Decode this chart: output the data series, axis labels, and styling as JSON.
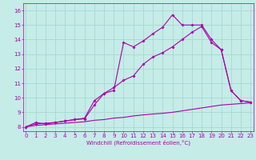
{
  "xlabel": "Windchill (Refroidissement éolien,°C)",
  "background_color": "#c5ece6",
  "grid_color": "#a8d8d2",
  "line_color": "#aa00aa",
  "x_ticks": [
    0,
    1,
    2,
    3,
    4,
    5,
    6,
    7,
    8,
    9,
    10,
    11,
    12,
    13,
    14,
    15,
    16,
    17,
    18,
    19,
    20,
    21,
    22,
    23
  ],
  "y_ticks": [
    8,
    9,
    10,
    11,
    12,
    13,
    14,
    15,
    16
  ],
  "ylim": [
    7.7,
    16.5
  ],
  "xlim": [
    -0.3,
    23.3
  ],
  "line1_x": [
    0,
    1,
    2,
    3,
    4,
    5,
    6,
    7,
    8,
    9,
    10,
    11,
    12,
    13,
    14,
    15,
    16,
    17,
    18,
    19,
    20,
    21,
    22,
    23
  ],
  "line1_y": [
    8.0,
    8.3,
    8.2,
    8.3,
    8.4,
    8.5,
    8.55,
    9.5,
    10.3,
    10.5,
    13.8,
    13.5,
    13.9,
    14.4,
    14.85,
    15.7,
    15.0,
    15.0,
    15.0,
    14.0,
    13.3,
    10.5,
    9.8,
    9.7
  ],
  "line2_x": [
    0,
    1,
    2,
    3,
    4,
    5,
    6,
    7,
    8,
    9,
    10,
    11,
    12,
    13,
    14,
    15,
    16,
    17,
    18,
    19,
    20,
    21,
    22,
    23
  ],
  "line2_y": [
    8.0,
    8.2,
    8.25,
    8.3,
    8.4,
    8.5,
    8.6,
    9.8,
    10.3,
    10.7,
    11.2,
    11.5,
    12.3,
    12.8,
    13.1,
    13.5,
    14.0,
    14.5,
    14.9,
    13.8,
    13.3,
    10.5,
    9.8,
    9.7
  ],
  "line3_x": [
    0,
    1,
    2,
    3,
    4,
    5,
    6,
    7,
    8,
    9,
    10,
    11,
    12,
    13,
    14,
    15,
    16,
    17,
    18,
    19,
    20,
    21,
    22,
    23
  ],
  "line3_y": [
    8.0,
    8.1,
    8.15,
    8.2,
    8.25,
    8.3,
    8.35,
    8.45,
    8.5,
    8.6,
    8.65,
    8.75,
    8.82,
    8.88,
    8.93,
    9.0,
    9.1,
    9.2,
    9.3,
    9.4,
    9.5,
    9.55,
    9.6,
    9.65
  ]
}
